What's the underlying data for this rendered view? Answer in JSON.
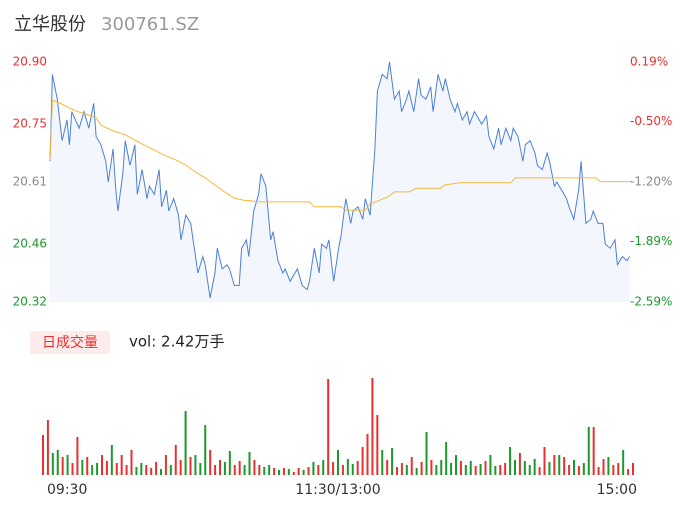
{
  "chart_data": [
    {
      "type": "line",
      "title": "立华股份",
      "subtitle": "300761.SZ",
      "xlim": [
        0,
        240
      ],
      "ylim": [
        20.32,
        20.9
      ],
      "yticks": [
        {
          "value": 20.9,
          "label": "20.90"
        },
        20.75,
        20.61,
        20.46,
        20.32
      ],
      "y2lim": [
        -2.59,
        0.19
      ],
      "y2ticks": [
        {
          "value": 0.19,
          "label": "0.19%"
        },
        {
          "value": -0.5,
          "label": "-0.50%"
        },
        {
          "value": -1.2,
          "label": "-1.20%"
        },
        {
          "value": -1.89,
          "label": "-1.89%"
        },
        {
          "value": -2.59,
          "label": "-2.59%"
        }
      ],
      "up_color": "#e8312f",
      "down_color": "#1a9a2a",
      "flat_color": "#8a8a8a",
      "series": [
        {
          "color": "#4a80d8",
          "fill": "#f3f6fc",
          "x": [
            0,
            1,
            3,
            5,
            7,
            8,
            9,
            12,
            14,
            16,
            18,
            19,
            21,
            23,
            24,
            26,
            27,
            28,
            30,
            31,
            33,
            35,
            36,
            38,
            40,
            41,
            43,
            45,
            46,
            48,
            49,
            51,
            53,
            54,
            56,
            58,
            59,
            61,
            63,
            64,
            66,
            68,
            69,
            71,
            73,
            74,
            76,
            78,
            79,
            81,
            82,
            84,
            86,
            87,
            89,
            91,
            92,
            94,
            96,
            97,
            99,
            101,
            102,
            104,
            106,
            107,
            109,
            111,
            112,
            114,
            115,
            117,
            119,
            120,
            122,
            124,
            125,
            127,
            129,
            130,
            132,
            134,
            135,
            137,
            139,
            140,
            142,
            144,
            145,
            147,
            148,
            150,
            152,
            153,
            155,
            157,
            158,
            160,
            162,
            163,
            165,
            167,
            168,
            170,
            172,
            173,
            175,
            176,
            178,
            180,
            181,
            183,
            185,
            186,
            188,
            190,
            191,
            193,
            195,
            196,
            198,
            200,
            201,
            203,
            205,
            206,
            208,
            209,
            211,
            213,
            214,
            216,
            218,
            219,
            221,
            223,
            224,
            226,
            228,
            229,
            231,
            233,
            234,
            236,
            238,
            239
          ],
          "values": [
            20.66,
            20.87,
            20.81,
            20.71,
            20.76,
            20.7,
            20.78,
            20.74,
            20.78,
            20.74,
            20.8,
            20.72,
            20.7,
            20.66,
            20.61,
            20.69,
            20.6,
            20.54,
            20.63,
            20.71,
            20.65,
            20.7,
            20.58,
            20.64,
            20.57,
            20.6,
            20.58,
            20.64,
            20.55,
            20.59,
            20.54,
            20.57,
            20.53,
            20.47,
            20.53,
            20.51,
            20.47,
            20.39,
            20.43,
            20.41,
            20.33,
            20.39,
            20.45,
            20.4,
            20.41,
            20.4,
            20.36,
            20.36,
            20.45,
            20.47,
            20.43,
            20.54,
            20.58,
            20.63,
            20.6,
            20.47,
            20.49,
            20.42,
            20.39,
            20.4,
            20.37,
            20.39,
            20.4,
            20.36,
            20.35,
            20.37,
            20.45,
            20.39,
            20.46,
            20.45,
            20.47,
            20.37,
            20.45,
            20.48,
            20.57,
            20.51,
            20.54,
            20.55,
            20.52,
            20.57,
            20.53,
            20.69,
            20.83,
            20.87,
            20.86,
            20.9,
            20.81,
            20.83,
            20.78,
            20.81,
            20.83,
            20.78,
            20.86,
            20.82,
            20.81,
            20.84,
            20.78,
            20.87,
            20.83,
            20.86,
            20.81,
            20.78,
            20.8,
            20.76,
            20.78,
            20.75,
            20.78,
            20.77,
            20.75,
            20.77,
            20.72,
            20.69,
            20.74,
            20.7,
            20.74,
            20.71,
            20.74,
            20.72,
            20.66,
            20.7,
            20.71,
            20.68,
            20.65,
            20.64,
            20.68,
            20.66,
            20.6,
            20.61,
            20.59,
            20.57,
            20.55,
            20.52,
            20.59,
            20.66,
            20.51,
            20.52,
            20.54,
            20.51,
            20.51,
            20.46,
            20.45,
            20.47,
            20.41,
            20.43,
            20.42,
            20.43
          ]
        },
        {
          "color": "#f5b73b",
          "x": [
            0,
            1,
            4,
            8,
            12,
            16,
            19,
            21,
            25,
            31,
            35,
            39,
            43,
            47,
            52,
            56,
            60,
            64,
            68,
            72,
            76,
            80,
            87,
            107,
            109,
            120,
            122,
            130,
            132,
            136,
            140,
            142,
            148,
            151,
            161,
            163,
            169,
            190,
            192,
            225,
            227,
            240
          ],
          "values": [
            20.663,
            20.808,
            20.801,
            20.789,
            20.779,
            20.772,
            20.765,
            20.748,
            20.736,
            20.724,
            20.711,
            20.699,
            20.687,
            20.675,
            20.663,
            20.651,
            20.634,
            20.62,
            20.603,
            20.586,
            20.571,
            20.566,
            20.562,
            20.562,
            20.55,
            20.55,
            20.542,
            20.542,
            20.557,
            20.566,
            20.576,
            20.586,
            20.586,
            20.595,
            20.595,
            20.603,
            20.608,
            20.608,
            20.62,
            20.62,
            20.611,
            20.611
          ]
        }
      ]
    },
    {
      "type": "bar",
      "title": "日成交量",
      "annotation": "vol: 2.42万手",
      "xlim": [
        0,
        240
      ],
      "xticks": [
        {
          "value": 0,
          "label": "09:30"
        },
        {
          "value": 120,
          "label": "11:30/13:00"
        },
        {
          "value": 240,
          "label": "15:00"
        }
      ],
      "ylim": [
        0,
        1000
      ],
      "colors": {
        "up": "#e8312f",
        "down": "#1a9a2a"
      },
      "x": [
        0,
        2,
        4,
        6,
        8,
        10,
        12,
        14,
        16,
        18,
        20,
        22,
        24,
        26,
        28,
        30,
        32,
        34,
        36,
        38,
        40,
        42,
        44,
        46,
        48,
        50,
        52,
        54,
        56,
        58,
        60,
        62,
        64,
        66,
        68,
        70,
        72,
        74,
        76,
        78,
        80,
        82,
        84,
        86,
        88,
        90,
        92,
        94,
        96,
        98,
        100,
        102,
        104,
        106,
        108,
        110,
        112,
        114,
        116,
        118,
        120,
        122,
        124,
        126,
        128,
        130,
        132,
        134,
        136,
        138,
        140,
        142,
        144,
        146,
        148,
        150,
        152,
        154,
        156,
        158,
        160,
        162,
        164,
        166,
        168,
        170,
        172,
        174,
        176,
        178,
        180,
        182,
        184,
        186,
        188,
        190,
        192,
        194,
        196,
        198,
        200,
        202,
        204,
        206,
        208,
        210,
        212,
        214,
        216,
        218,
        220,
        222,
        224,
        226,
        228,
        230,
        232,
        234,
        236,
        238,
        240
      ],
      "values": [
        400,
        550,
        220,
        250,
        180,
        200,
        120,
        380,
        150,
        180,
        100,
        120,
        200,
        140,
        300,
        120,
        200,
        100,
        250,
        80,
        120,
        100,
        70,
        130,
        60,
        200,
        100,
        300,
        150,
        640,
        180,
        200,
        120,
        500,
        250,
        100,
        150,
        130,
        240,
        100,
        140,
        100,
        230,
        150,
        100,
        80,
        100,
        70,
        50,
        70,
        60,
        30,
        70,
        50,
        80,
        130,
        100,
        150,
        960,
        130,
        250,
        100,
        160,
        110,
        140,
        280,
        410,
        970,
        600,
        250,
        150,
        270,
        80,
        120,
        100,
        180,
        70,
        130,
        430,
        150,
        100,
        150,
        330,
        120,
        200,
        140,
        100,
        140,
        90,
        110,
        140,
        200,
        90,
        100,
        120,
        280,
        150,
        220,
        140,
        100,
        160,
        80,
        280,
        130,
        200,
        200,
        180,
        100,
        150,
        90,
        120,
        480,
        480,
        80,
        160,
        180,
        100,
        120,
        250,
        60,
        120
      ],
      "directions": [
        "up",
        "up",
        "down",
        "down",
        "up",
        "down",
        "up",
        "up",
        "down",
        "up",
        "down",
        "down",
        "up",
        "up",
        "down",
        "up",
        "up",
        "up",
        "up",
        "down",
        "down",
        "up",
        "up",
        "up",
        "down",
        "up",
        "down",
        "up",
        "up",
        "down",
        "up",
        "down",
        "down",
        "down",
        "up",
        "up",
        "up",
        "down",
        "down",
        "up",
        "up",
        "down",
        "down",
        "up",
        "up",
        "down",
        "down",
        "up",
        "down",
        "up",
        "down",
        "up",
        "up",
        "down",
        "up",
        "down",
        "up",
        "down",
        "up",
        "up",
        "down",
        "up",
        "down",
        "down",
        "up",
        "up",
        "up",
        "up",
        "up",
        "down",
        "up",
        "down",
        "up",
        "up",
        "down",
        "up",
        "down",
        "up",
        "down",
        "up",
        "down",
        "down",
        "down",
        "down",
        "down",
        "up",
        "down",
        "down",
        "up",
        "down",
        "up",
        "down",
        "down",
        "up",
        "up",
        "down",
        "down",
        "up",
        "down",
        "down",
        "down",
        "up",
        "up",
        "down",
        "up",
        "down",
        "up",
        "up",
        "down",
        "up",
        "down",
        "down",
        "up",
        "up",
        "up",
        "down",
        "up",
        "up",
        "down",
        "up",
        "up"
      ]
    }
  ]
}
